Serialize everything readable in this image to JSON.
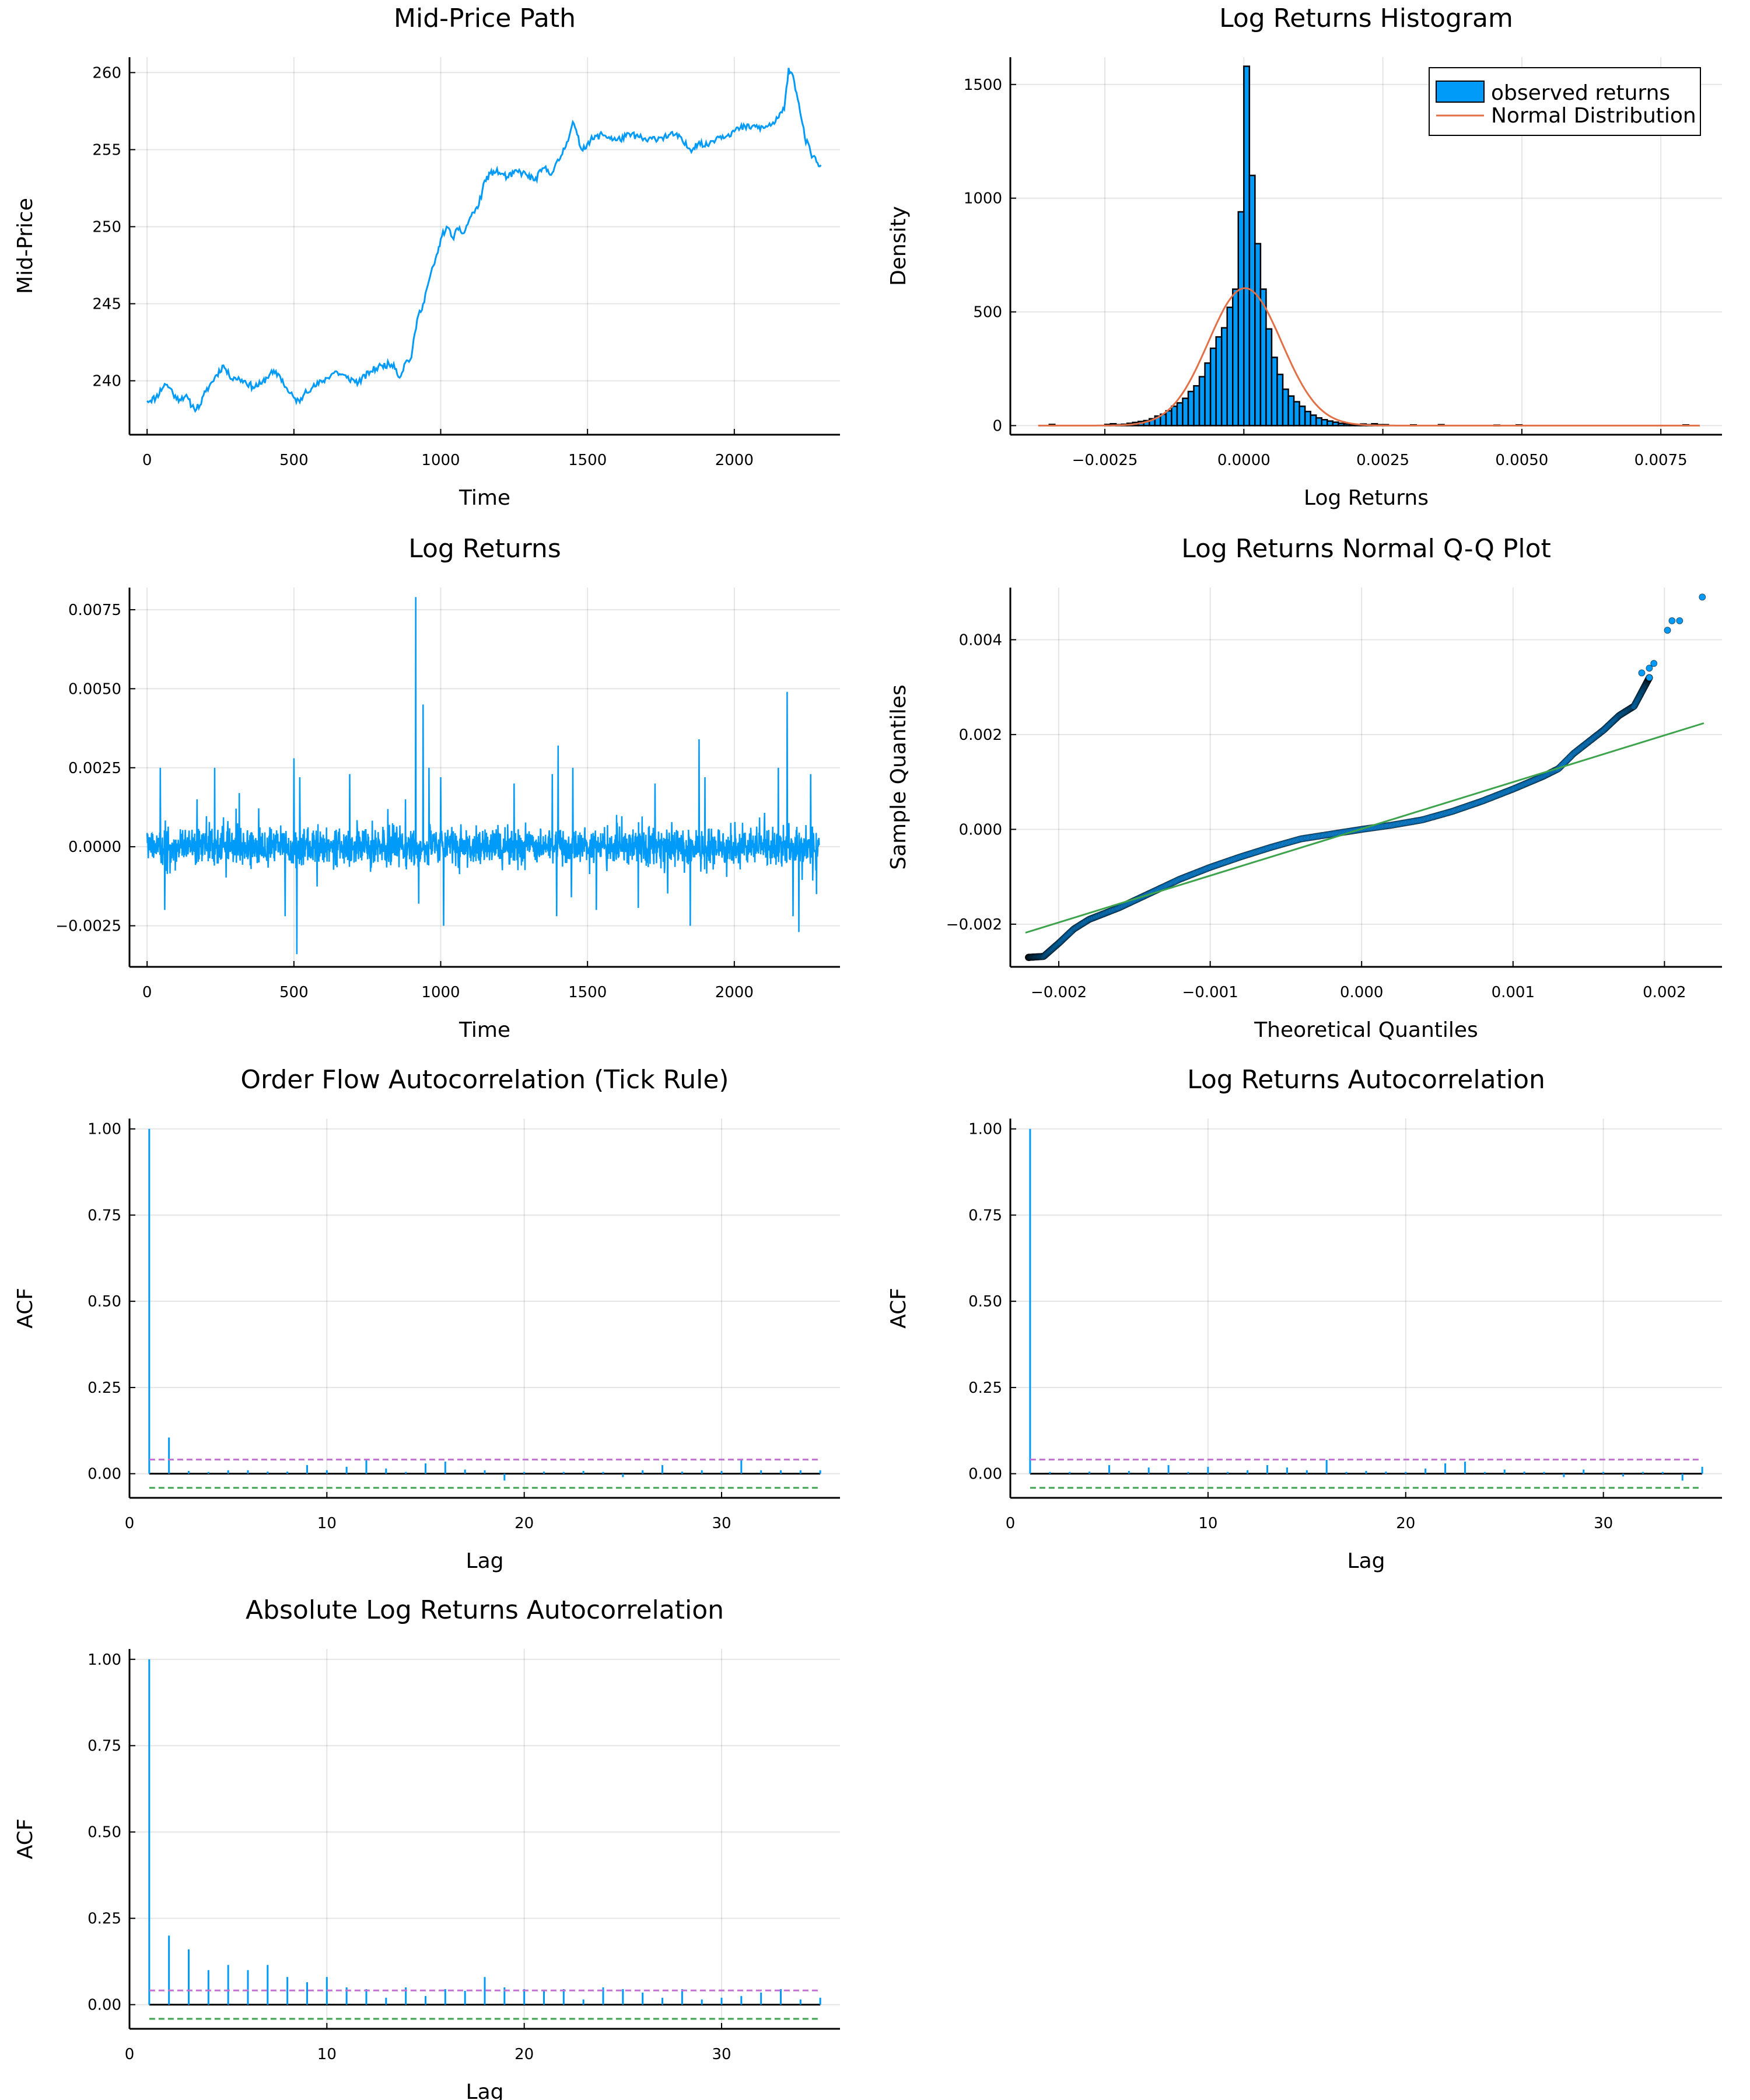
{
  "chart_data": [
    {
      "id": "mid-price-path",
      "type": "line",
      "title": "Mid-Price Path",
      "xlabel": "Time",
      "ylabel": "Mid-Price",
      "xlim": [
        -60,
        2360
      ],
      "ylim": [
        236.5,
        261
      ],
      "xticks": [
        0,
        500,
        1000,
        1500,
        2000
      ],
      "yticks": [
        240,
        245,
        250,
        255,
        260
      ],
      "grid": true,
      "color": "#009af9",
      "series": [
        {
          "x": [
            0,
            30,
            60,
            80,
            100,
            130,
            160,
            180,
            200,
            230,
            260,
            280,
            300,
            330,
            360,
            390,
            420,
            450,
            480,
            500,
            520,
            540,
            560,
            600,
            640,
            680,
            720,
            760,
            800,
            840,
            860,
            880,
            900,
            920,
            940,
            960,
            990,
            1000,
            1020,
            1040,
            1060,
            1080,
            1100,
            1130,
            1150,
            1180,
            1200,
            1230,
            1260,
            1290,
            1320,
            1350,
            1380,
            1410,
            1430,
            1450,
            1480,
            1510,
            1550,
            1600,
            1650,
            1700,
            1750,
            1800,
            1850,
            1880,
            1900,
            1940,
            1980,
            2020,
            2060,
            2100,
            2140,
            2170,
            2185,
            2200,
            2220,
            2240,
            2260,
            2280,
            2295
          ],
          "y": [
            238.7,
            238.9,
            239.8,
            239.5,
            238.8,
            239.0,
            238.2,
            238.4,
            239.3,
            240.2,
            241.0,
            240.3,
            240.2,
            240.0,
            239.6,
            239.8,
            240.5,
            240.4,
            239.3,
            238.9,
            238.6,
            239.4,
            239.5,
            240.0,
            240.6,
            240.2,
            239.9,
            240.6,
            241.0,
            241.1,
            240.2,
            241.2,
            241.5,
            244.0,
            245.0,
            246.5,
            248.3,
            249.2,
            250.0,
            249.3,
            249.8,
            249.6,
            250.6,
            251.4,
            253.0,
            253.6,
            253.5,
            253.2,
            253.6,
            253.4,
            253.0,
            253.8,
            253.5,
            254.6,
            255.5,
            256.8,
            255.0,
            255.6,
            256.0,
            255.6,
            256.0,
            255.6,
            255.8,
            256.0,
            255.0,
            255.5,
            255.2,
            255.8,
            256.0,
            256.4,
            256.5,
            256.4,
            256.8,
            257.6,
            260.3,
            259.8,
            258.0,
            255.8,
            254.8,
            254.2,
            254.0
          ]
        }
      ]
    },
    {
      "id": "log-returns-histogram",
      "type": "bar",
      "title": "Log Returns Histogram",
      "xlabel": "Log Returns",
      "ylabel": "Density",
      "xlim": [
        -0.0042,
        0.0086
      ],
      "ylim": [
        -40,
        1620
      ],
      "xticks": [
        -0.0025,
        0.0,
        0.0025,
        0.005,
        0.0075
      ],
      "xtick_labels": [
        "−0.0025",
        "0.0000",
        "0.0025",
        "0.0050",
        "0.0075"
      ],
      "yticks": [
        0,
        500,
        1000,
        1500
      ],
      "grid": true,
      "legend": "top-right",
      "bin_width": 0.0001,
      "series": [
        {
          "name": "observed returns",
          "color": "#009af9",
          "bin_left": [
            -0.0035,
            -0.0025,
            -0.0024,
            -0.0023,
            -0.0022,
            -0.0021,
            -0.002,
            -0.0019,
            -0.0018,
            -0.0017,
            -0.0016,
            -0.0015,
            -0.0014,
            -0.0013,
            -0.0012,
            -0.0011,
            -0.001,
            -0.0009,
            -0.0008,
            -0.0007,
            -0.0006,
            -0.0005,
            -0.0004,
            -0.0003,
            -0.0002,
            -0.0001,
            0.0,
            0.0001,
            0.0002,
            0.0003,
            0.0004,
            0.0005,
            0.0006,
            0.0007,
            0.0008,
            0.0009,
            0.001,
            0.0011,
            0.0012,
            0.0013,
            0.0014,
            0.0015,
            0.0016,
            0.0017,
            0.0018,
            0.0019,
            0.002,
            0.0021,
            0.0022,
            0.0023,
            0.0024,
            0.0025,
            0.003,
            0.0035,
            0.0045,
            0.0049,
            0.0079
          ],
          "values": [
            5,
            5,
            8,
            4,
            6,
            10,
            14,
            18,
            22,
            30,
            42,
            50,
            65,
            85,
            100,
            120,
            150,
            175,
            215,
            275,
            340,
            390,
            430,
            520,
            600,
            940,
            1580,
            1100,
            800,
            600,
            425,
            300,
            225,
            160,
            130,
            105,
            85,
            62,
            46,
            34,
            26,
            20,
            15,
            10,
            8,
            6,
            5,
            7,
            4,
            8,
            4,
            4,
            3,
            4,
            2,
            3,
            3
          ]
        },
        {
          "name": "Normal Distribution",
          "type": "line",
          "color": "#e26f46",
          "mean": 2e-05,
          "std": 0.00066,
          "x_range": [
            -0.0037,
            0.0082
          ]
        }
      ]
    },
    {
      "id": "log-returns",
      "type": "line",
      "title": "Log Returns",
      "xlabel": "Time",
      "ylabel": "",
      "xlim": [
        -60,
        2360
      ],
      "ylim": [
        -0.0038,
        0.0082
      ],
      "xticks": [
        0,
        500,
        1000,
        1500,
        2000
      ],
      "yticks": [
        -0.0025,
        0.0,
        0.0025,
        0.005,
        0.0075
      ],
      "ytick_labels": [
        "−0.0025",
        "0.0000",
        "0.0025",
        "0.0050",
        "0.0075"
      ],
      "grid": true,
      "color": "#009af9",
      "noise_scale": 0.00055,
      "n_points": 2290,
      "spikes": [
        {
          "x": 45,
          "y": 0.0025
        },
        {
          "x": 60,
          "y": -0.002
        },
        {
          "x": 170,
          "y": 0.0015
        },
        {
          "x": 230,
          "y": 0.0025
        },
        {
          "x": 470,
          "y": -0.0022
        },
        {
          "x": 500,
          "y": 0.0028
        },
        {
          "x": 510,
          "y": -0.0034
        },
        {
          "x": 520,
          "y": 0.0022
        },
        {
          "x": 690,
          "y": 0.0023
        },
        {
          "x": 880,
          "y": 0.0015
        },
        {
          "x": 915,
          "y": 0.0079
        },
        {
          "x": 925,
          "y": -0.0018
        },
        {
          "x": 940,
          "y": 0.0045
        },
        {
          "x": 960,
          "y": 0.0025
        },
        {
          "x": 1000,
          "y": 0.0022
        },
        {
          "x": 1010,
          "y": -0.0025
        },
        {
          "x": 1250,
          "y": 0.002
        },
        {
          "x": 1380,
          "y": 0.0023
        },
        {
          "x": 1395,
          "y": -0.0022
        },
        {
          "x": 1400,
          "y": 0.0032
        },
        {
          "x": 1450,
          "y": 0.0025
        },
        {
          "x": 1530,
          "y": -0.002
        },
        {
          "x": 1730,
          "y": 0.002
        },
        {
          "x": 1850,
          "y": -0.0025
        },
        {
          "x": 1880,
          "y": 0.0034
        },
        {
          "x": 1900,
          "y": 0.0022
        },
        {
          "x": 2150,
          "y": 0.0025
        },
        {
          "x": 2180,
          "y": 0.0049
        },
        {
          "x": 2200,
          "y": -0.0022
        },
        {
          "x": 2220,
          "y": -0.0027
        },
        {
          "x": 2260,
          "y": 0.0023
        },
        {
          "x": 2280,
          "y": -0.0015
        }
      ]
    },
    {
      "id": "qq-plot",
      "type": "scatter",
      "title": "Log Returns Normal Q-Q Plot",
      "xlabel": "Theoretical Quantiles",
      "ylabel": "Sample Quantiles",
      "xlim": [
        -0.00232,
        0.00238
      ],
      "ylim": [
        -0.0029,
        0.0051
      ],
      "xticks": [
        -0.002,
        -0.001,
        0.0,
        0.001,
        0.002
      ],
      "xtick_labels": [
        "−0.002",
        "−0.001",
        "0.000",
        "0.001",
        "0.002"
      ],
      "yticks": [
        -0.002,
        0.0,
        0.002,
        0.004
      ],
      "ytick_labels": [
        "−0.002",
        "0.000",
        "0.002",
        "0.004"
      ],
      "grid": true,
      "reference_line": {
        "x": [
          -0.00222,
          0.00226
        ],
        "y": [
          -0.00218,
          0.00224
        ],
        "color": "#3da44d"
      },
      "point_color": "#009af9",
      "quantile_curve": {
        "x": [
          -0.0022,
          -0.0021,
          -0.002,
          -0.0019,
          -0.0018,
          -0.0016,
          -0.0014,
          -0.0012,
          -0.001,
          -0.0008,
          -0.0006,
          -0.0004,
          -0.0002,
          0.0,
          0.0002,
          0.0004,
          0.0006,
          0.0008,
          0.001,
          0.0012,
          0.0013,
          0.0014,
          0.0016,
          0.0017,
          0.0018,
          0.0019
        ],
        "y": [
          -0.0027,
          -0.00268,
          -0.0024,
          -0.0021,
          -0.0019,
          -0.00165,
          -0.00135,
          -0.00105,
          -0.0008,
          -0.00058,
          -0.00038,
          -0.0002,
          -0.0001,
          0.0,
          9e-05,
          0.0002,
          0.00038,
          0.0006,
          0.00085,
          0.00112,
          0.00128,
          0.0016,
          0.0021,
          0.0024,
          0.0026,
          0.0032
        ]
      },
      "outliers": {
        "x": [
          0.00185,
          0.0019,
          0.00193,
          0.00202,
          0.00205,
          0.0021,
          0.00225
        ],
        "y": [
          0.0033,
          0.0034,
          0.0035,
          0.0042,
          0.0044,
          0.0044,
          0.0049
        ]
      },
      "n_points": 2290
    },
    {
      "id": "order-flow-acf",
      "type": "bar",
      "title": "Order Flow Autocorrelation (Tick Rule)",
      "xlabel": "Lag",
      "ylabel": "ACF",
      "xlim": [
        0,
        36
      ],
      "ylim": [
        -0.07,
        1.03
      ],
      "xticks": [
        0,
        10,
        20,
        30
      ],
      "yticks": [
        0.0,
        0.25,
        0.5,
        0.75,
        1.0
      ],
      "ytick_labels": [
        "0.00",
        "0.25",
        "0.50",
        "0.75",
        "1.00"
      ],
      "grid": true,
      "conf_band": [
        0.041,
        -0.041
      ],
      "categories": [
        1,
        2,
        3,
        4,
        5,
        6,
        7,
        8,
        9,
        10,
        11,
        12,
        13,
        14,
        15,
        16,
        17,
        18,
        19,
        20,
        21,
        22,
        23,
        24,
        25,
        26,
        27,
        28,
        29,
        30,
        31,
        32,
        33,
        34,
        35
      ],
      "values": [
        1.0,
        0.105,
        0.008,
        0.005,
        0.01,
        0.01,
        0.006,
        0.006,
        0.025,
        0.01,
        0.02,
        0.04,
        0.015,
        0.005,
        0.03,
        0.035,
        0.012,
        0.01,
        -0.02,
        0.005,
        0.006,
        0.005,
        0.008,
        0.005,
        -0.01,
        0.01,
        0.025,
        0.006,
        0.01,
        0.008,
        0.04,
        0.01,
        0.01,
        0.01,
        0.01
      ]
    },
    {
      "id": "log-returns-acf",
      "type": "bar",
      "title": "Log Returns Autocorrelation",
      "xlabel": "Lag",
      "ylabel": "ACF",
      "xlim": [
        0,
        36
      ],
      "ylim": [
        -0.07,
        1.03
      ],
      "xticks": [
        0,
        10,
        20,
        30
      ],
      "yticks": [
        0.0,
        0.25,
        0.5,
        0.75,
        1.0
      ],
      "ytick_labels": [
        "0.00",
        "0.25",
        "0.50",
        "0.75",
        "1.00"
      ],
      "grid": true,
      "conf_band": [
        0.041,
        -0.041
      ],
      "categories": [
        1,
        2,
        3,
        4,
        5,
        6,
        7,
        8,
        9,
        10,
        11,
        12,
        13,
        14,
        15,
        16,
        17,
        18,
        19,
        20,
        21,
        22,
        23,
        24,
        25,
        26,
        27,
        28,
        29,
        30,
        31,
        32,
        33,
        34,
        35
      ],
      "values": [
        1.0,
        0.005,
        0.005,
        0.006,
        0.025,
        0.008,
        0.018,
        0.025,
        0.005,
        0.02,
        0.005,
        0.01,
        0.025,
        0.018,
        0.01,
        0.04,
        0.005,
        0.008,
        0.006,
        0.005,
        0.015,
        0.03,
        0.035,
        0.005,
        0.012,
        0.006,
        0.005,
        -0.01,
        0.012,
        0.005,
        -0.008,
        0.005,
        0.005,
        -0.02,
        0.02
      ]
    },
    {
      "id": "abs-log-returns-acf",
      "type": "bar",
      "title": "Absolute Log Returns Autocorrelation",
      "xlabel": "Lag",
      "ylabel": "ACF",
      "xlim": [
        0,
        36
      ],
      "ylim": [
        -0.07,
        1.03
      ],
      "xticks": [
        0,
        10,
        20,
        30
      ],
      "yticks": [
        0.0,
        0.25,
        0.5,
        0.75,
        1.0
      ],
      "ytick_labels": [
        "0.00",
        "0.25",
        "0.50",
        "0.75",
        "1.00"
      ],
      "grid": true,
      "conf_band": [
        0.041,
        -0.041
      ],
      "categories": [
        1,
        2,
        3,
        4,
        5,
        6,
        7,
        8,
        9,
        10,
        11,
        12,
        13,
        14,
        15,
        16,
        17,
        18,
        19,
        20,
        21,
        22,
        23,
        24,
        25,
        26,
        27,
        28,
        29,
        30,
        31,
        32,
        33,
        34,
        35
      ],
      "values": [
        1.0,
        0.2,
        0.16,
        0.1,
        0.115,
        0.1,
        0.115,
        0.08,
        0.065,
        0.08,
        0.05,
        0.045,
        0.02,
        0.05,
        0.025,
        0.045,
        0.04,
        0.08,
        0.05,
        0.045,
        0.04,
        0.045,
        0.015,
        0.05,
        0.045,
        0.035,
        0.02,
        0.045,
        0.015,
        0.02,
        0.025,
        0.035,
        0.045,
        0.015,
        0.02
      ]
    }
  ]
}
